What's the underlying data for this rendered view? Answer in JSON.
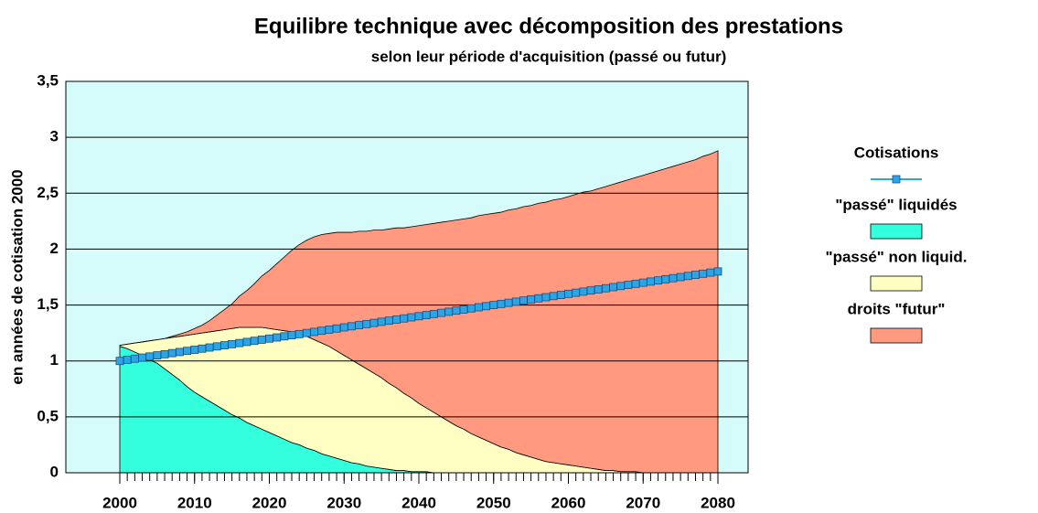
{
  "chart_data": {
    "type": "stacked_area",
    "title": "Equilibre technique avec décomposition des prestations",
    "subtitle": "selon leur période d'acquisition (passé ou futur)",
    "y_label": "en années de cotisation 2000",
    "x": [
      2000,
      2001,
      2002,
      2003,
      2004,
      2005,
      2006,
      2007,
      2008,
      2009,
      2010,
      2011,
      2012,
      2013,
      2014,
      2015,
      2016,
      2017,
      2018,
      2019,
      2020,
      2021,
      2022,
      2023,
      2024,
      2025,
      2026,
      2027,
      2028,
      2029,
      2030,
      2031,
      2032,
      2033,
      2034,
      2035,
      2036,
      2037,
      2038,
      2039,
      2040,
      2041,
      2042,
      2043,
      2044,
      2045,
      2046,
      2047,
      2048,
      2049,
      2050,
      2051,
      2052,
      2053,
      2054,
      2055,
      2056,
      2057,
      2058,
      2059,
      2060,
      2061,
      2062,
      2063,
      2064,
      2065,
      2066,
      2067,
      2068,
      2069,
      2070,
      2071,
      2072,
      2073,
      2074,
      2075,
      2076,
      2077,
      2078,
      2079,
      2080
    ],
    "xlim": [
      2000,
      2080
    ],
    "xticks": [
      2000,
      2010,
      2020,
      2030,
      2040,
      2050,
      2060,
      2070,
      2080
    ],
    "ylim": [
      0,
      3.5
    ],
    "yticks": [
      0,
      {
        "value": 0.5,
        "label": "0,5"
      },
      1,
      {
        "value": 1.5,
        "label": "1,5"
      },
      2,
      {
        "value": 2.5,
        "label": "2,5"
      },
      3,
      {
        "value": 3.5,
        "label": "3,5"
      }
    ],
    "grid": true,
    "legend": "right",
    "plot_background": "#d5fbfb",
    "series": [
      {
        "name": "Cotisations",
        "kind": "line",
        "color": "#2aa6e6",
        "values": [
          1.0,
          1.01,
          1.02,
          1.03,
          1.04,
          1.05,
          1.06,
          1.07,
          1.08,
          1.09,
          1.1,
          1.11,
          1.12,
          1.13,
          1.14,
          1.15,
          1.16,
          1.17,
          1.18,
          1.19,
          1.2,
          1.21,
          1.22,
          1.23,
          1.24,
          1.25,
          1.26,
          1.27,
          1.28,
          1.29,
          1.3,
          1.31,
          1.32,
          1.33,
          1.34,
          1.35,
          1.36,
          1.37,
          1.38,
          1.39,
          1.4,
          1.41,
          1.42,
          1.43,
          1.44,
          1.45,
          1.46,
          1.47,
          1.48,
          1.49,
          1.5,
          1.51,
          1.52,
          1.53,
          1.54,
          1.55,
          1.56,
          1.57,
          1.58,
          1.59,
          1.6,
          1.61,
          1.62,
          1.63,
          1.64,
          1.65,
          1.66,
          1.67,
          1.68,
          1.69,
          1.7,
          1.71,
          1.72,
          1.73,
          1.74,
          1.75,
          1.76,
          1.77,
          1.78,
          1.79,
          1.8
        ]
      },
      {
        "name": "\"passé\" liquidés",
        "kind": "area",
        "color": "#33ffdd",
        "values": [
          1.13,
          1.11,
          1.08,
          1.05,
          1.01,
          0.98,
          0.93,
          0.88,
          0.83,
          0.77,
          0.72,
          0.68,
          0.64,
          0.6,
          0.56,
          0.52,
          0.49,
          0.45,
          0.42,
          0.39,
          0.36,
          0.33,
          0.3,
          0.27,
          0.25,
          0.22,
          0.2,
          0.17,
          0.15,
          0.13,
          0.11,
          0.09,
          0.08,
          0.06,
          0.05,
          0.04,
          0.03,
          0.02,
          0.02,
          0.01,
          0.01,
          0.01,
          0,
          0,
          0,
          0,
          0,
          0,
          0,
          0,
          0,
          0,
          0,
          0,
          0,
          0,
          0,
          0,
          0,
          0,
          0,
          0,
          0,
          0,
          0,
          0,
          0,
          0,
          0,
          0,
          0,
          0,
          0,
          0,
          0,
          0,
          0,
          0,
          0,
          0,
          0
        ]
      },
      {
        "name": "\"passé\" non liquid.",
        "kind": "area",
        "color": "#ffffc4",
        "values": [
          0.01,
          0.04,
          0.08,
          0.12,
          0.17,
          0.21,
          0.27,
          0.33,
          0.39,
          0.46,
          0.52,
          0.57,
          0.62,
          0.67,
          0.72,
          0.77,
          0.81,
          0.85,
          0.88,
          0.91,
          0.93,
          0.95,
          0.97,
          0.99,
          0.99,
          1.0,
          0.99,
          0.99,
          0.98,
          0.96,
          0.94,
          0.92,
          0.89,
          0.87,
          0.84,
          0.81,
          0.77,
          0.74,
          0.69,
          0.66,
          0.61,
          0.57,
          0.54,
          0.5,
          0.46,
          0.42,
          0.39,
          0.35,
          0.32,
          0.29,
          0.26,
          0.23,
          0.21,
          0.18,
          0.16,
          0.14,
          0.12,
          0.1,
          0.09,
          0.08,
          0.07,
          0.06,
          0.05,
          0.04,
          0.03,
          0.02,
          0.02,
          0.01,
          0.01,
          0.01,
          0,
          0,
          0,
          0,
          0,
          0,
          0,
          0,
          0,
          0,
          0
        ]
      },
      {
        "name": "droits \"futur\"",
        "kind": "area",
        "color": "#ff9980",
        "values": [
          0,
          0,
          0,
          0,
          0,
          0,
          0,
          0.01,
          0.02,
          0.03,
          0.05,
          0.07,
          0.1,
          0.14,
          0.18,
          0.22,
          0.28,
          0.33,
          0.39,
          0.46,
          0.52,
          0.59,
          0.66,
          0.73,
          0.8,
          0.86,
          0.92,
          0.97,
          1.01,
          1.06,
          1.1,
          1.14,
          1.19,
          1.23,
          1.28,
          1.32,
          1.38,
          1.43,
          1.48,
          1.53,
          1.59,
          1.64,
          1.69,
          1.74,
          1.79,
          1.84,
          1.88,
          1.93,
          1.98,
          2.02,
          2.06,
          2.1,
          2.14,
          2.18,
          2.22,
          2.25,
          2.29,
          2.32,
          2.35,
          2.37,
          2.4,
          2.43,
          2.46,
          2.48,
          2.51,
          2.54,
          2.56,
          2.59,
          2.61,
          2.63,
          2.66,
          2.68,
          2.7,
          2.72,
          2.74,
          2.76,
          2.78,
          2.8,
          2.83,
          2.85,
          2.88
        ]
      }
    ]
  }
}
